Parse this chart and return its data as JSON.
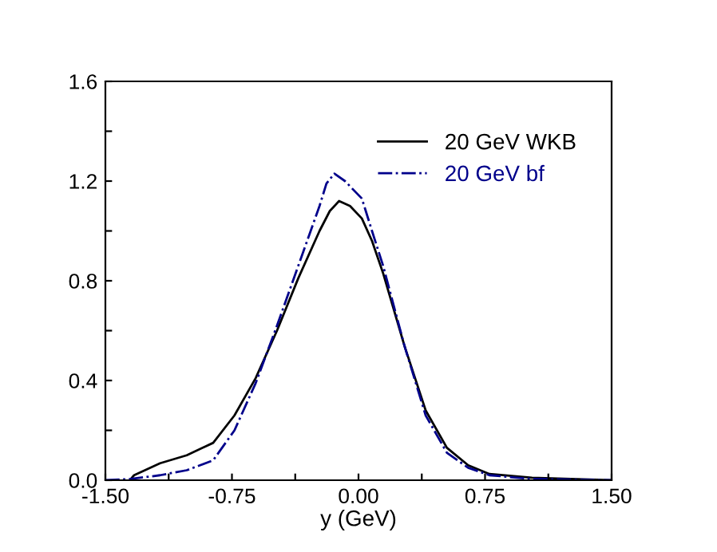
{
  "chart_data": {
    "type": "line",
    "xlabel": "y (GeV)",
    "xlim": [
      -1.5,
      1.5
    ],
    "ylim": [
      0,
      1.6
    ],
    "xticks": [
      {
        "value": -1.5,
        "label": "-1.50"
      },
      {
        "value": -1.125,
        "label": null
      },
      {
        "value": -0.75,
        "label": "-0.75"
      },
      {
        "value": -0.375,
        "label": null
      },
      {
        "value": 0.0,
        "label": "0.00"
      },
      {
        "value": 0.375,
        "label": null
      },
      {
        "value": 0.75,
        "label": "0.75"
      },
      {
        "value": 1.125,
        "label": null
      },
      {
        "value": 1.5,
        "label": "1.50"
      }
    ],
    "yticks": [
      {
        "value": 0.0,
        "label": "0.0"
      },
      {
        "value": 0.2,
        "label": null
      },
      0.4,
      {
        "value": 0.6,
        "label": null
      },
      0.8,
      {
        "value": 1.0,
        "label": null
      },
      1.2,
      {
        "value": 1.4,
        "label": null
      },
      1.6
    ],
    "legend": "top right",
    "grid": false,
    "marker": "none",
    "series": [
      {
        "name": "20 GeV WKB",
        "color": "#000000",
        "line_style": "solid",
        "x": [
          -1.349,
          -1.33,
          -1.176,
          -1.018,
          -0.861,
          -0.735,
          -0.609,
          -0.483,
          -0.357,
          -0.231,
          -0.17,
          -0.115,
          -0.05,
          0.02,
          0.08,
          0.146,
          0.272,
          0.398,
          0.524,
          0.65,
          0.776,
          1.028,
          1.5
        ],
        "values": [
          0.005,
          0.02,
          0.068,
          0.1,
          0.15,
          0.26,
          0.41,
          0.6,
          0.81,
          1.0,
          1.08,
          1.12,
          1.1,
          1.05,
          0.96,
          0.83,
          0.54,
          0.28,
          0.13,
          0.06,
          0.025,
          0.01,
          0.0
        ]
      },
      {
        "name": "20 GeV bf",
        "color": "#00008b",
        "line_style": "dashdot",
        "x": [
          -1.5,
          -1.349,
          -1.176,
          -1.018,
          -0.861,
          -0.735,
          -0.609,
          -0.483,
          -0.357,
          -0.231,
          -0.19,
          -0.143,
          -0.08,
          0.02,
          0.08,
          0.146,
          0.272,
          0.398,
          0.524,
          0.65,
          0.776,
          1.028,
          1.5
        ],
        "values": [
          0.0,
          0.005,
          0.02,
          0.04,
          0.08,
          0.2,
          0.39,
          0.62,
          0.86,
          1.1,
          1.19,
          1.23,
          1.2,
          1.13,
          1.0,
          0.86,
          0.54,
          0.26,
          0.11,
          0.05,
          0.02,
          0.005,
          0.0
        ]
      }
    ]
  }
}
